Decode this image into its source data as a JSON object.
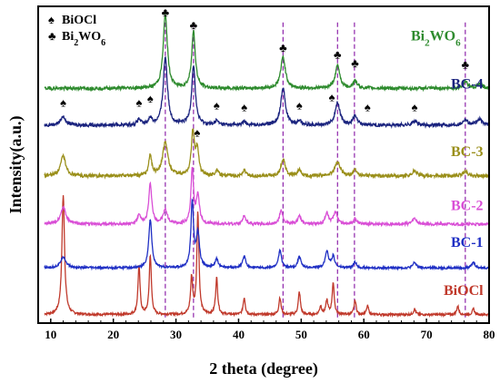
{
  "chart_data": {
    "type": "line",
    "title": "",
    "xlabel": "2 theta (degree)",
    "ylabel": "Intensity(a.u.)",
    "xlim": [
      8,
      80
    ],
    "x_ticks": [
      "10",
      "20",
      "30",
      "40",
      "50",
      "60",
      "70",
      "80"
    ],
    "y_ticks_labeled": false,
    "grid": false,
    "legend": {
      "placement": "top-left",
      "entries": [
        {
          "symbol": "spade",
          "label": "BiOCl"
        },
        {
          "symbol": "club",
          "label": "Bi2WO6"
        }
      ]
    },
    "reference_lines_x": [
      28.3,
      32.8,
      47.1,
      55.8,
      58.5,
      76.2
    ],
    "series": [
      {
        "name": "BiOCl",
        "color": "#c0392b",
        "offset": 0.03,
        "noise": 0.004,
        "peaks": [
          [
            12.0,
            0.42,
            0.25
          ],
          [
            24.1,
            0.17,
            0.2
          ],
          [
            25.9,
            0.21,
            0.2
          ],
          [
            32.5,
            0.13,
            0.2
          ],
          [
            33.5,
            0.36,
            0.2
          ],
          [
            36.5,
            0.13,
            0.2
          ],
          [
            40.9,
            0.06,
            0.2
          ],
          [
            46.6,
            0.06,
            0.2
          ],
          [
            49.7,
            0.08,
            0.2
          ],
          [
            53.1,
            0.03,
            0.2
          ],
          [
            54.1,
            0.05,
            0.2
          ],
          [
            55.1,
            0.11,
            0.2
          ],
          [
            58.6,
            0.05,
            0.2
          ],
          [
            60.6,
            0.03,
            0.2
          ],
          [
            68.1,
            0.02,
            0.2
          ],
          [
            75.0,
            0.03,
            0.2
          ],
          [
            77.5,
            0.02,
            0.2
          ]
        ]
      },
      {
        "name": "BC-1",
        "color": "#1f2fc4",
        "offset": 0.195,
        "noise": 0.004,
        "peaks": [
          [
            12.0,
            0.04,
            0.5
          ],
          [
            25.9,
            0.17,
            0.3
          ],
          [
            32.6,
            0.23,
            0.25
          ],
          [
            33.5,
            0.12,
            0.3
          ],
          [
            36.5,
            0.03,
            0.3
          ],
          [
            40.9,
            0.04,
            0.3
          ],
          [
            46.6,
            0.06,
            0.3
          ],
          [
            49.7,
            0.04,
            0.3
          ],
          [
            54.1,
            0.06,
            0.3
          ],
          [
            55.1,
            0.04,
            0.3
          ],
          [
            58.6,
            0.02,
            0.3
          ],
          [
            68.1,
            0.02,
            0.3
          ],
          [
            77.5,
            0.02,
            0.3
          ]
        ]
      },
      {
        "name": "BC-2",
        "color": "#d94fd6",
        "offset": 0.35,
        "noise": 0.005,
        "peaks": [
          [
            12.0,
            0.06,
            0.5
          ],
          [
            24.1,
            0.03,
            0.3
          ],
          [
            25.9,
            0.14,
            0.3
          ],
          [
            28.3,
            0.05,
            0.4
          ],
          [
            32.6,
            0.19,
            0.25
          ],
          [
            33.5,
            0.1,
            0.3
          ],
          [
            40.9,
            0.03,
            0.3
          ],
          [
            46.8,
            0.05,
            0.3
          ],
          [
            49.7,
            0.03,
            0.3
          ],
          [
            54.1,
            0.04,
            0.3
          ],
          [
            55.5,
            0.04,
            0.4
          ],
          [
            58.6,
            0.02,
            0.3
          ],
          [
            68.1,
            0.02,
            0.4
          ]
        ]
      },
      {
        "name": "BC-3",
        "color": "#9a8f1a",
        "offset": 0.52,
        "noise": 0.006,
        "peaks": [
          [
            12.0,
            0.07,
            0.5
          ],
          [
            25.9,
            0.07,
            0.3
          ],
          [
            28.3,
            0.12,
            0.5
          ],
          [
            32.7,
            0.15,
            0.3
          ],
          [
            33.4,
            0.09,
            0.3
          ],
          [
            36.5,
            0.02,
            0.3
          ],
          [
            40.9,
            0.02,
            0.3
          ],
          [
            47.1,
            0.06,
            0.4
          ],
          [
            49.7,
            0.02,
            0.3
          ],
          [
            55.8,
            0.05,
            0.5
          ],
          [
            58.6,
            0.02,
            0.4
          ],
          [
            68.1,
            0.02,
            0.4
          ],
          [
            76.2,
            0.015,
            0.5
          ]
        ]
      },
      {
        "name": "BC-4",
        "color": "#1a237e",
        "offset": 0.7,
        "noise": 0.006,
        "peaks": [
          [
            12.0,
            0.03,
            0.5
          ],
          [
            24.1,
            0.02,
            0.3
          ],
          [
            25.9,
            0.025,
            0.3
          ],
          [
            28.3,
            0.24,
            0.4
          ],
          [
            32.8,
            0.21,
            0.35
          ],
          [
            36.5,
            0.015,
            0.3
          ],
          [
            40.9,
            0.012,
            0.3
          ],
          [
            47.1,
            0.13,
            0.45
          ],
          [
            49.7,
            0.015,
            0.3
          ],
          [
            55.8,
            0.08,
            0.45
          ],
          [
            58.6,
            0.03,
            0.4
          ],
          [
            68.1,
            0.015,
            0.4
          ],
          [
            76.2,
            0.02,
            0.45
          ],
          [
            78.5,
            0.02,
            0.5
          ]
        ]
      },
      {
        "name": "Bi2WO6",
        "color": "#2e8b2e",
        "offset": 0.83,
        "noise": 0.006,
        "peaks": [
          [
            28.3,
            0.26,
            0.4
          ],
          [
            32.8,
            0.2,
            0.35
          ],
          [
            47.1,
            0.11,
            0.45
          ],
          [
            55.8,
            0.08,
            0.45
          ],
          [
            58.6,
            0.025,
            0.4
          ],
          [
            76.2,
            0.025,
            0.45
          ],
          [
            78.5,
            0.015,
            0.5
          ]
        ]
      }
    ],
    "markers": [
      {
        "symbol": "club",
        "x": 28.3,
        "y": 1.085
      },
      {
        "symbol": "club",
        "x": 32.8,
        "y": 1.04
      },
      {
        "symbol": "club",
        "x": 47.1,
        "y": 0.96
      },
      {
        "symbol": "club",
        "x": 55.8,
        "y": 0.935
      },
      {
        "symbol": "club",
        "x": 58.6,
        "y": 0.905
      },
      {
        "symbol": "club",
        "x": 76.2,
        "y": 0.9
      },
      {
        "symbol": "spade",
        "x": 12.0,
        "y": 0.765
      },
      {
        "symbol": "spade",
        "x": 24.1,
        "y": 0.765
      },
      {
        "symbol": "spade",
        "x": 25.9,
        "y": 0.78
      },
      {
        "symbol": "spade",
        "x": 33.4,
        "y": 0.66
      },
      {
        "symbol": "spade",
        "x": 36.5,
        "y": 0.755
      },
      {
        "symbol": "spade",
        "x": 40.9,
        "y": 0.75
      },
      {
        "symbol": "spade",
        "x": 49.7,
        "y": 0.755
      },
      {
        "symbol": "spade",
        "x": 54.9,
        "y": 0.785
      },
      {
        "symbol": "spade",
        "x": 60.6,
        "y": 0.75
      },
      {
        "symbol": "spade",
        "x": 68.1,
        "y": 0.75
      }
    ]
  }
}
